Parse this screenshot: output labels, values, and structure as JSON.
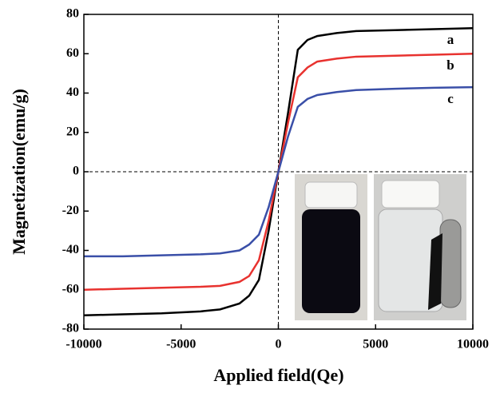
{
  "chart_data": {
    "type": "line",
    "xlabel": "Applied field(Qe)",
    "ylabel": "Magnetization(emu/g)",
    "x": [
      -10000,
      -8000,
      -6000,
      -4000,
      -3000,
      -2000,
      -1500,
      -1000,
      -500,
      0,
      500,
      1000,
      1500,
      2000,
      3000,
      4000,
      6000,
      8000,
      10000
    ],
    "series": [
      {
        "name": "a",
        "color": "#000000",
        "values": [
          -73,
          -72.5,
          -72,
          -71,
          -70,
          -67,
          -63,
          -55,
          -30,
          0,
          30,
          62,
          67,
          69,
          70.5,
          71.5,
          72,
          72.5,
          73
        ]
      },
      {
        "name": "b",
        "color": "#e8322f",
        "values": [
          -60,
          -59.5,
          -59,
          -58.5,
          -58,
          -56,
          -53,
          -45,
          -25,
          0,
          25,
          48,
          53,
          56,
          57.5,
          58.5,
          59,
          59.5,
          60
        ]
      },
      {
        "name": "c",
        "color": "#3a4fa8",
        "values": [
          -43,
          -43,
          -42.5,
          -42,
          -41.5,
          -40,
          -37,
          -32,
          -18,
          0,
          18,
          33,
          37,
          39,
          40.5,
          41.5,
          42.2,
          42.7,
          43
        ]
      }
    ],
    "xlim": [
      -10000,
      10000
    ],
    "xticks": [
      -10000,
      -5000,
      0,
      5000,
      10000
    ],
    "ylim": [
      -80,
      80
    ],
    "yticks": [
      -80,
      -60,
      -40,
      -20,
      0,
      20,
      40,
      60,
      80
    ],
    "zero_lines": true
  }
}
